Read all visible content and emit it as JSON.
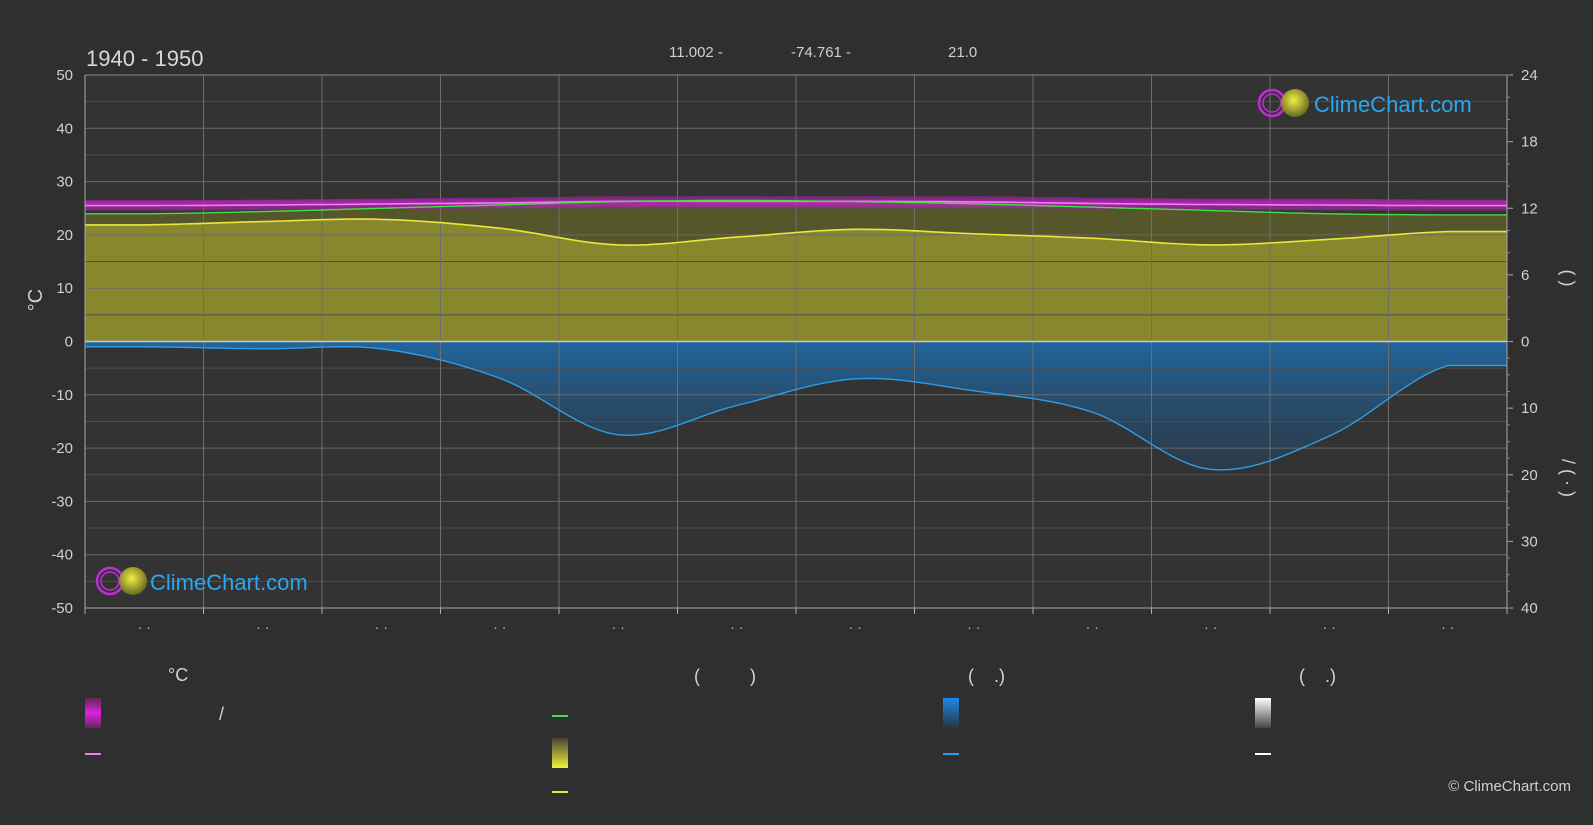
{
  "header": {
    "period": "1940 - 1950",
    "lat": "11.002 -",
    "lon": "-74.761 -",
    "elevation": "21.0"
  },
  "watermark": {
    "text": "ClimeChart.com"
  },
  "copyright": "© ClimeChart.com",
  "colors": {
    "background": "#2f2f2f",
    "temp_band": "#d21fd2",
    "temp_mean": "#f27cf2",
    "daylight": "#44dd44",
    "sunshine_fill": "#8c8a2d",
    "sunshine_line": "#e8e83a",
    "rain_fill": "#1f6fb0",
    "rain_line": "#2d9de6",
    "snow_line": "#ffffff",
    "brand_blue": "#2ba6f0"
  },
  "chart_data": {
    "type": "area",
    "title": "1940 - 1950",
    "left_axis": {
      "label": "°C",
      "range": [
        -50,
        50
      ],
      "ticks": [
        "50",
        "40",
        "30",
        "20",
        "10",
        "0",
        "-10",
        "-20",
        "-30",
        "-40",
        "-50"
      ]
    },
    "right_axis_upper": {
      "range": [
        0,
        24
      ],
      "ticks": [
        "24",
        "18",
        "12",
        "6",
        "0"
      ],
      "label": "(   )"
    },
    "right_axis_lower": {
      "range": [
        0,
        40
      ],
      "ticks": [
        "0",
        "10",
        "20",
        "30",
        "40"
      ],
      "label": "/  (  ·  )"
    },
    "x_tick_labels": [
      "· ·",
      "· ·",
      "· ·",
      "· ·",
      "· ·",
      "· ·",
      "· ·",
      "· ·",
      "· ·",
      "· ·",
      "· ·",
      "· ·"
    ],
    "grid": true,
    "series": [
      {
        "key": "temp_max",
        "values": [
          26.5,
          26.6,
          26.8,
          27.0,
          27.3,
          27.3,
          27.3,
          27.3,
          27.0,
          26.8,
          26.8,
          26.6
        ]
      },
      {
        "key": "temp_min",
        "values": [
          24.5,
          24.6,
          24.8,
          25.0,
          25.2,
          25.2,
          25.1,
          25.1,
          24.9,
          24.7,
          24.6,
          24.5
        ]
      },
      {
        "key": "temp_mean",
        "values": [
          25.5,
          25.6,
          25.8,
          26.0,
          26.3,
          26.3,
          26.3,
          26.2,
          25.9,
          25.7,
          25.6,
          25.5
        ]
      },
      {
        "key": "daylight_hours",
        "values": [
          11.5,
          11.7,
          12.0,
          12.3,
          12.6,
          12.7,
          12.6,
          12.4,
          12.1,
          11.8,
          11.5,
          11.4
        ]
      },
      {
        "key": "sunshine_hours",
        "values": [
          10.5,
          10.8,
          11.0,
          10.2,
          8.7,
          9.4,
          10.1,
          9.7,
          9.3,
          8.7,
          9.2,
          9.9
        ]
      },
      {
        "key": "precipitation_mm",
        "values": [
          0.8,
          1.1,
          1.1,
          5.5,
          14.0,
          9.6,
          5.6,
          7.4,
          10.6,
          19.2,
          14.2,
          3.6
        ]
      }
    ]
  },
  "legend": {
    "col1_header": "°C",
    "col1_row1": "/",
    "col2_header": "(          )",
    "col3_header": "(    .)",
    "col4_header": "(    .)"
  }
}
